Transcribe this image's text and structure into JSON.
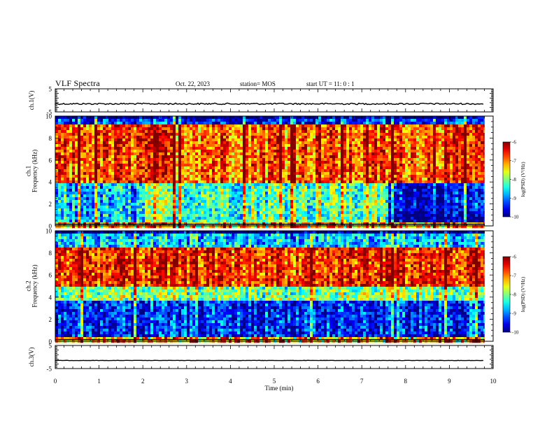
{
  "header": {
    "title": "VLF Spectra",
    "date": "Oct. 22, 2023",
    "station": "station= MOS",
    "start": "start  UT =   11: 0  : 1"
  },
  "chart_data": [
    {
      "id": "ch1V",
      "type": "line",
      "ylabel": "ch.1(V)",
      "ylim": [
        -5,
        5
      ],
      "yticks": [
        "5",
        "-5"
      ],
      "xlim": [
        0,
        10
      ],
      "approx_level": -1.5
    },
    {
      "id": "ch1spec",
      "type": "heatmap",
      "ylabel": "ch.1\nFrequency (kHz)",
      "ylim": [
        0,
        10
      ],
      "yticks": [
        "0",
        "2",
        "4",
        "6",
        "8",
        "10"
      ],
      "xlim": [
        0,
        10
      ],
      "colorbar": {
        "label": "log(PSD) (V²/Hz)",
        "ticks": [
          "-6",
          "-7",
          "-8",
          "-9",
          "-10"
        ],
        "range": [
          -10,
          -6
        ]
      },
      "regions": [
        {
          "t": [
            0,
            2
          ],
          "f": [
            0.3,
            4
          ],
          "level": -8.8
        },
        {
          "t": [
            2,
            7.6
          ],
          "f": [
            0.3,
            4
          ],
          "level": -8.2
        },
        {
          "t": [
            7.6,
            9.8
          ],
          "f": [
            1.5,
            4
          ],
          "level": -9.6
        },
        {
          "t": [
            0,
            9.8
          ],
          "f": [
            4,
            9.3
          ],
          "level": -6.8
        },
        {
          "t": [
            0,
            9.8
          ],
          "f": [
            9.3,
            10
          ],
          "level": -9.4
        }
      ]
    },
    {
      "id": "ch2spec",
      "type": "heatmap",
      "ylabel": "ch.2\nFrequency (kHz)",
      "ylim": [
        0,
        10
      ],
      "yticks": [
        "0",
        "2",
        "4",
        "6",
        "8",
        "10"
      ],
      "xlim": [
        0,
        10
      ],
      "colorbar": {
        "label": "log(PSD) (V²/Hz)",
        "ticks": [
          "-6",
          "-7",
          "-8",
          "-9",
          "-10"
        ],
        "range": [
          -10,
          -6
        ]
      },
      "regions": [
        {
          "t": [
            0,
            9.8
          ],
          "f": [
            0.3,
            3.8
          ],
          "level": -9.4
        },
        {
          "t": [
            0,
            9.8
          ],
          "f": [
            3.8,
            5
          ],
          "level": -8.0
        },
        {
          "t": [
            0,
            9.8
          ],
          "f": [
            5,
            8.5
          ],
          "level": -6.6
        },
        {
          "t": [
            0,
            9.8
          ],
          "f": [
            8.5,
            10
          ],
          "level": -8.7
        }
      ]
    },
    {
      "id": "ch3V",
      "type": "line",
      "ylabel": "ch.3(V)",
      "ylim": [
        -5,
        5
      ],
      "yticks": [
        "5",
        "-5"
      ],
      "xlim": [
        0,
        10
      ],
      "approx_level": -1.5
    }
  ],
  "xaxis": {
    "label": "Time  (min)",
    "ticks": [
      "0",
      "1",
      "2",
      "3",
      "4",
      "5",
      "6",
      "7",
      "8",
      "9",
      "10"
    ]
  }
}
